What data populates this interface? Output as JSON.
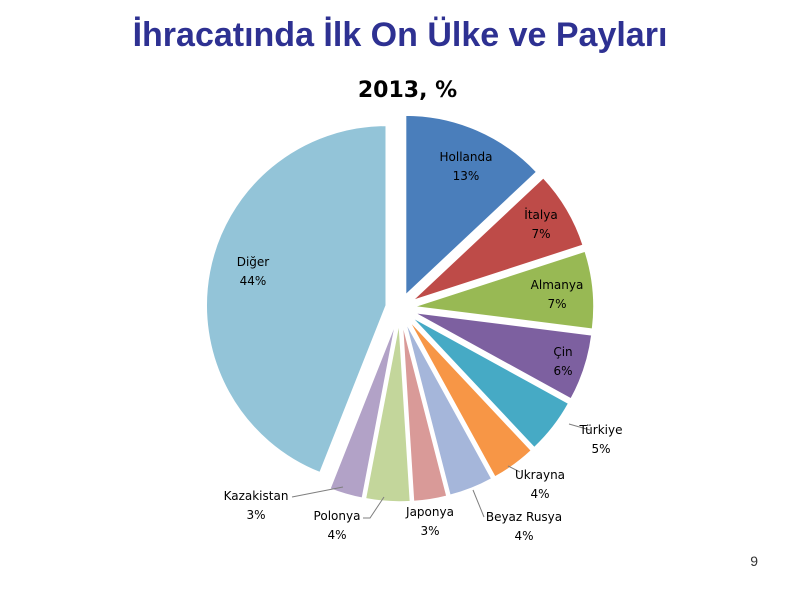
{
  "slide": {
    "title": "İhracatında İlk On Ülke ve Payları",
    "page_number": "9"
  },
  "chart_data": {
    "type": "pie",
    "title": "2013, %",
    "slices": [
      {
        "label": "Hollanda",
        "value": 13,
        "value_label": "13%",
        "color": "#4A7EBB"
      },
      {
        "label": "İtalya",
        "value": 7,
        "value_label": "7%",
        "color": "#BE4B48"
      },
      {
        "label": "Almanya",
        "value": 7,
        "value_label": "7%",
        "color": "#98B954"
      },
      {
        "label": "Çin",
        "value": 6,
        "value_label": "6%",
        "color": "#7D60A0"
      },
      {
        "label": "Türkiye",
        "value": 5,
        "value_label": "5%",
        "color": "#46AAC5"
      },
      {
        "label": "Ukrayna",
        "value": 4,
        "value_label": "4%",
        "color": "#F79646"
      },
      {
        "label": "Beyaz Rusya",
        "value": 4,
        "value_label": "4%",
        "color": "#A5B6DA"
      },
      {
        "label": "Japonya",
        "value": 3,
        "value_label": "3%",
        "color": "#D99A98"
      },
      {
        "label": "Polonya",
        "value": 4,
        "value_label": "4%",
        "color": "#C3D69B"
      },
      {
        "label": "Kazakistan",
        "value": 3,
        "value_label": "3%",
        "color": "#B2A2C7"
      },
      {
        "label": "Diğer",
        "value": 44,
        "value_label": "44%",
        "color": "#93C4D8"
      }
    ]
  }
}
